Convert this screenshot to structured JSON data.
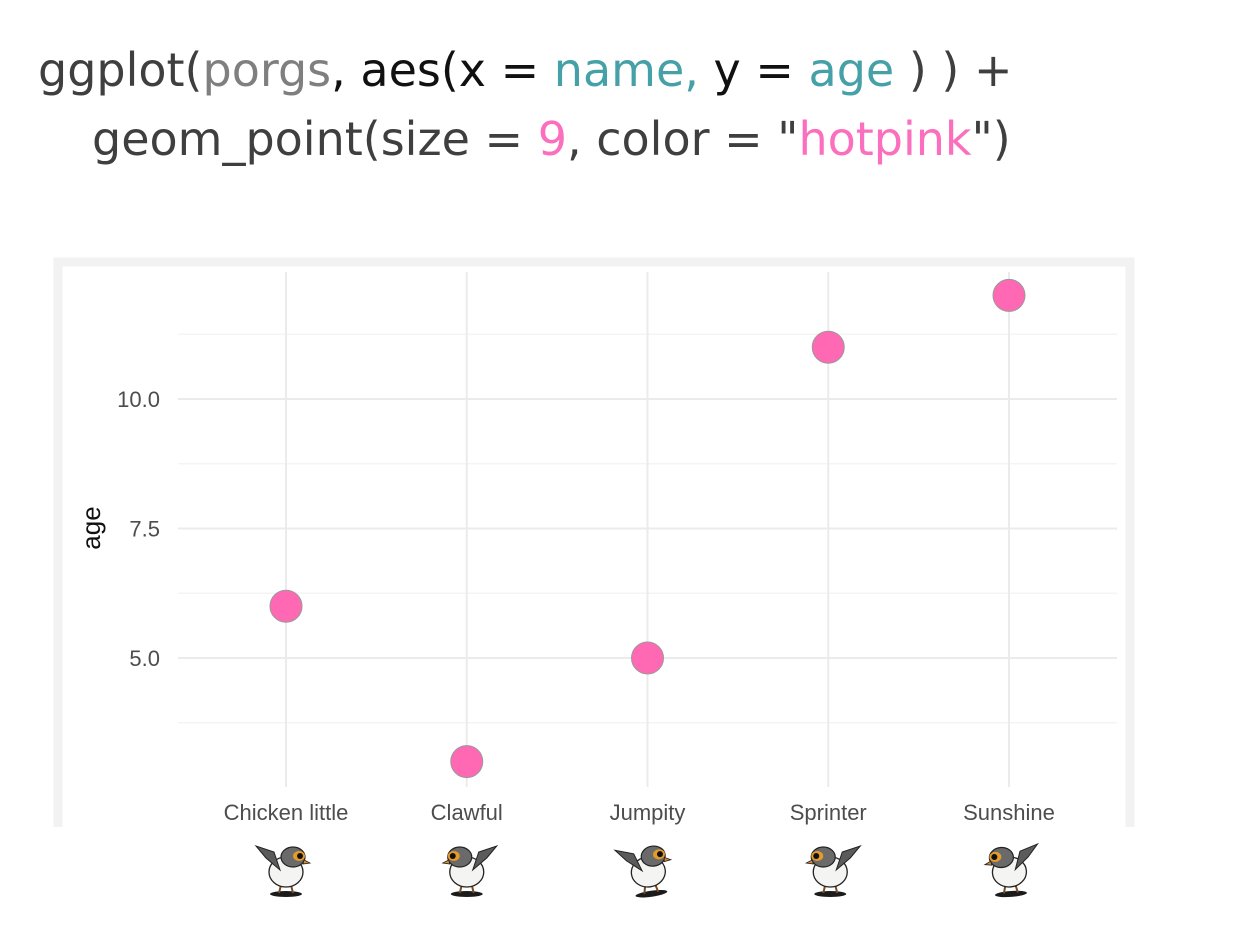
{
  "code": {
    "line1": [
      {
        "text": "ggplot(",
        "role": "plain"
      },
      {
        "text": "porgs",
        "role": "gray"
      },
      {
        "text": ", aes(x = ",
        "role": "black"
      },
      {
        "text": "name,",
        "role": "teal"
      },
      {
        "text": " y = ",
        "role": "black"
      },
      {
        "text": "age",
        "role": "teal"
      },
      {
        "text": " ) ) +",
        "role": "plain"
      }
    ],
    "line2": [
      {
        "text": "geom_point(size = ",
        "role": "plain"
      },
      {
        "text": "9",
        "role": "pink"
      },
      {
        "text": ", color = \"",
        "role": "plain"
      },
      {
        "text": "hotpink",
        "role": "pink"
      },
      {
        "text": "\")",
        "role": "plain"
      }
    ]
  },
  "chart_data": {
    "type": "scatter",
    "categories": [
      "Chicken little",
      "Clawful",
      "Jumpity",
      "Sprinter",
      "Sunshine"
    ],
    "values": [
      6,
      3,
      5,
      11,
      12
    ],
    "title": "",
    "xlabel": "",
    "ylabel": "age",
    "y_ticks": [
      5.0,
      7.5,
      10.0
    ],
    "y_tick_labels": [
      "5.0",
      "7.5",
      "10.0"
    ],
    "y_minor_ticks": [
      3.75,
      6.25,
      8.75,
      11.25
    ],
    "ylim": [
      2.45,
      12.55
    ],
    "grid": true,
    "legend": "none",
    "point_color": "#FF69B4",
    "point_outline": "#999999",
    "panel_border_color": "#F2F2F2",
    "grid_color": "#EBEBEB"
  },
  "porg_icons": [
    "porg-icon",
    "porg-icon",
    "porg-icon",
    "porg-icon",
    "porg-icon"
  ]
}
